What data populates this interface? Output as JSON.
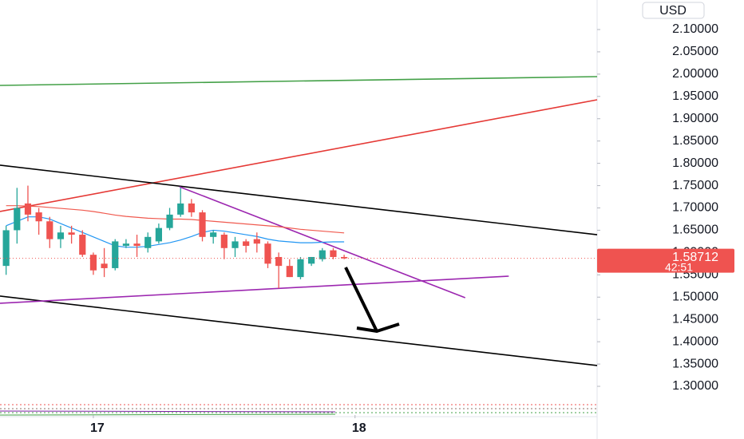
{
  "chart_data": {
    "type": "candlestick",
    "x": [
      -8,
      -7,
      -6,
      -5,
      -4,
      -3,
      -2,
      -1,
      0,
      1,
      2,
      3,
      4,
      5,
      6,
      7,
      8,
      9,
      10,
      11,
      12,
      13,
      14,
      15,
      16,
      17,
      18,
      19,
      20,
      21,
      22,
      23
    ],
    "open": [
      1.57,
      1.65,
      1.71,
      1.69,
      1.67,
      1.63,
      1.645,
      1.64,
      1.595,
      1.575,
      1.565,
      1.615,
      1.62,
      1.61,
      1.625,
      1.655,
      1.685,
      1.71,
      1.69,
      1.635,
      1.64,
      1.61,
      1.625,
      1.63,
      1.62,
      1.59,
      1.57,
      1.545,
      1.575,
      1.585,
      1.605,
      1.59
    ],
    "high": [
      1.66,
      1.745,
      1.75,
      1.7,
      1.68,
      1.66,
      1.66,
      1.65,
      1.6,
      1.61,
      1.63,
      1.63,
      1.64,
      1.645,
      1.665,
      1.7,
      1.745,
      1.72,
      1.695,
      1.65,
      1.645,
      1.635,
      1.63,
      1.645,
      1.625,
      1.6,
      1.585,
      1.59,
      1.59,
      1.61,
      1.61,
      1.595
    ],
    "low": [
      1.55,
      1.62,
      1.67,
      1.64,
      1.61,
      1.61,
      1.62,
      1.59,
      1.55,
      1.545,
      1.56,
      1.61,
      1.59,
      1.6,
      1.62,
      1.65,
      1.68,
      1.68,
      1.625,
      1.62,
      1.585,
      1.59,
      1.6,
      1.6,
      1.565,
      1.52,
      1.545,
      1.54,
      1.57,
      1.58,
      1.585,
      1.585
    ],
    "close": [
      1.65,
      1.7,
      1.685,
      1.67,
      1.63,
      1.645,
      1.64,
      1.595,
      1.56,
      1.565,
      1.625,
      1.62,
      1.615,
      1.635,
      1.655,
      1.685,
      1.71,
      1.69,
      1.635,
      1.645,
      1.61,
      1.625,
      1.615,
      1.62,
      1.575,
      1.57,
      1.545,
      1.585,
      1.59,
      1.605,
      1.59,
      1.587
    ],
    "up_color": "#26a69a",
    "down_color": "#ef5350",
    "moving_averages": [
      {
        "color": "#f05a4f",
        "values": [
          1.705,
          1.705,
          1.704,
          1.703,
          1.701,
          1.699,
          1.697,
          1.695,
          1.692,
          1.688,
          1.684,
          1.681,
          1.679,
          1.677,
          1.676,
          1.675,
          1.675,
          1.674,
          1.672,
          1.67,
          1.668,
          1.666,
          1.664,
          1.662,
          1.66,
          1.658,
          1.655,
          1.652,
          1.65,
          1.648,
          1.646,
          1.644
        ]
      },
      {
        "color": "#2196f3",
        "values": [
          1.66,
          1.67,
          1.68,
          1.68,
          1.675,
          1.665,
          1.655,
          1.645,
          1.635,
          1.625,
          1.615,
          1.612,
          1.612,
          1.614,
          1.618,
          1.622,
          1.628,
          1.636,
          1.645,
          1.65,
          1.648,
          1.644,
          1.64,
          1.636,
          1.63,
          1.626,
          1.624,
          1.622,
          1.622,
          1.623,
          1.624,
          1.624
        ]
      }
    ],
    "trendlines": [
      {
        "color": "#43a047",
        "x": [
          -8.56,
          46.2
        ],
        "y": [
          1.9747,
          1.9944
        ]
      },
      {
        "color": "#e53935",
        "x": [
          -8.56,
          46.2
        ],
        "y": [
          1.692,
          1.9425
        ]
      },
      {
        "color": "#000000",
        "x": [
          -8.56,
          46.2
        ],
        "y": [
          1.7958,
          1.64
        ]
      },
      {
        "color": "#000000",
        "x": [
          -8.56,
          46.2
        ],
        "y": [
          1.5023,
          1.3466
        ]
      },
      {
        "color": "#9c27b0",
        "x": [
          7.9,
          34.1
        ],
        "y": [
          1.7475,
          1.4987
        ]
      },
      {
        "color": "#9c27b0",
        "x": [
          -8.56,
          38.1
        ],
        "y": [
          1.4862,
          1.547
        ]
      }
    ],
    "xlim": [
      -8.56,
      46.2
    ],
    "ylim": [
      1.2356,
      2.1662
    ],
    "xticks": [
      {
        "value": 0,
        "label": "17"
      },
      {
        "value": 24,
        "label": "18"
      }
    ],
    "yticks": [
      {
        "value": 1.3,
        "label": "1.30000"
      },
      {
        "value": 1.35,
        "label": "1.35000"
      },
      {
        "value": 1.4,
        "label": "1.40000"
      },
      {
        "value": 1.45,
        "label": "1.45000"
      },
      {
        "value": 1.5,
        "label": "1.50000"
      },
      {
        "value": 1.55,
        "label": "1.55000"
      },
      {
        "value": 1.6,
        "label": "1.60000"
      },
      {
        "value": 1.65,
        "label": "1.65000"
      },
      {
        "value": 1.7,
        "label": "1.70000"
      },
      {
        "value": 1.75,
        "label": "1.75000"
      },
      {
        "value": 1.8,
        "label": "1.80000"
      },
      {
        "value": 1.85,
        "label": "1.85000"
      },
      {
        "value": 1.9,
        "label": "1.90000"
      },
      {
        "value": 1.95,
        "label": "1.95000"
      },
      {
        "value": 2.0,
        "label": "2.00000"
      },
      {
        "value": 2.05,
        "label": "2.05000"
      },
      {
        "value": 2.1,
        "label": "2.10000"
      }
    ],
    "currency": "USD",
    "last_price": 1.58712,
    "countdown": "42:51"
  }
}
